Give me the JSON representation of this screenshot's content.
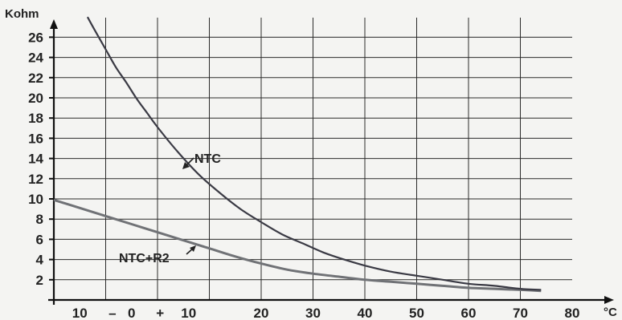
{
  "chart_data": {
    "type": "line",
    "ylabel": "Kohm",
    "xlabel": "°C",
    "y_ticks": [
      "2",
      "4",
      "6",
      "8",
      "10",
      "12",
      "14",
      "16",
      "18",
      "20",
      "22",
      "24",
      "26"
    ],
    "y_tick_values": [
      2,
      4,
      6,
      8,
      10,
      12,
      14,
      16,
      18,
      20,
      22,
      24,
      26
    ],
    "x_ticks": [
      "10",
      "–",
      "0",
      "+",
      "10",
      "20",
      "30",
      "40",
      "50",
      "60",
      "70",
      "80"
    ],
    "xlim": [
      -10,
      84
    ],
    "ylim": [
      0,
      28
    ],
    "grid": true,
    "series": [
      {
        "name": "NTC",
        "color": "#3a3a44",
        "x": [
          -3.5,
          -2,
          0,
          2,
          4,
          6,
          8,
          10,
          14,
          18,
          22,
          26,
          30,
          34,
          38,
          42,
          46,
          50,
          55,
          60,
          65,
          70,
          75,
          80,
          84
        ],
        "y": [
          28.0,
          26.6,
          24.8,
          23.0,
          21.5,
          19.9,
          18.5,
          17.1,
          14.6,
          12.4,
          10.6,
          9.0,
          7.7,
          6.5,
          5.6,
          4.7,
          4.0,
          3.4,
          2.8,
          2.4,
          2.0,
          1.6,
          1.4,
          1.1,
          1.0
        ]
      },
      {
        "name": "NTC+R2",
        "color": "#707276",
        "x": [
          -10,
          -5,
          0,
          5,
          10,
          15,
          20,
          25,
          30,
          35,
          40,
          45,
          50,
          55,
          60,
          65,
          70,
          75,
          80,
          84
        ],
        "y": [
          9.9,
          9.1,
          8.3,
          7.5,
          6.7,
          5.9,
          5.1,
          4.3,
          3.6,
          3.0,
          2.6,
          2.3,
          2.0,
          1.8,
          1.6,
          1.4,
          1.2,
          1.1,
          1.0,
          0.9
        ]
      }
    ],
    "annotations": [
      "NTC",
      "NTC+R2"
    ]
  }
}
